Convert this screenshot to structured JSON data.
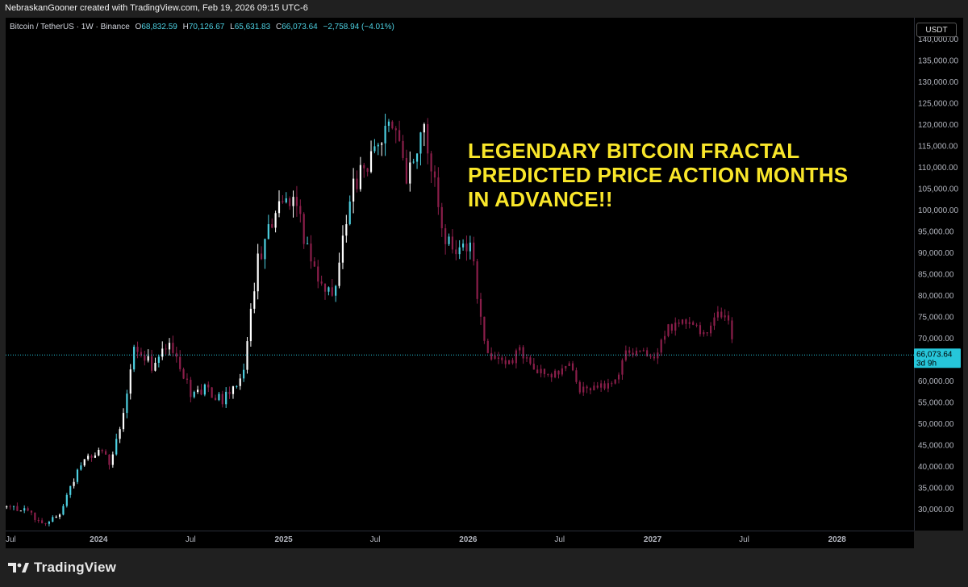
{
  "header": {
    "text": "NebraskanGooner created with TradingView.com, Feb 19, 2026 09:15 UTC-6"
  },
  "legend": {
    "symbol": "Bitcoin / TetherUS · 1W · Binance",
    "open_label": "O",
    "open_value": "68,832.59",
    "high_label": "H",
    "high_value": "70,126.67",
    "low_label": "L",
    "low_value": "65,631.83",
    "close_label": "C",
    "close_value": "66,073.64",
    "change": "−2,758.94 (−4.01%)"
  },
  "price_axis": {
    "currency": "USDT",
    "current_price": "66,073.64",
    "countdown": "3d 9h"
  },
  "annotation": {
    "lines": [
      "LEGENDARY BITCOIN FRACTAL",
      "PREDICTED PRICE ACTION MONTHS",
      "IN ADVANCE!!"
    ]
  },
  "footer": {
    "brand": "TradingView"
  },
  "colors": {
    "up": "#4dd0e1",
    "up_white": "#ffffff",
    "down": "#8b1e4a",
    "projection": "#8b1e4a",
    "annotation": "#f9e62a",
    "last_price": "#26c6da"
  },
  "chart_data": {
    "type": "candlestick",
    "timeframe": "1W",
    "ylim": [
      25000,
      145000
    ],
    "y_ticks": [
      30000,
      35000,
      40000,
      45000,
      50000,
      55000,
      60000,
      65000,
      70000,
      75000,
      80000,
      85000,
      90000,
      95000,
      100000,
      105000,
      110000,
      115000,
      120000,
      125000,
      130000,
      135000,
      140000
    ],
    "y_tick_labels": [
      "30,000.00",
      "35,000.00",
      "40,000.00",
      "45,000.00",
      "50,000.00",
      "55,000.00",
      "60,000.00",
      "65,000.00",
      "70,000.00",
      "75,000.00",
      "80,000.00",
      "85,000.00",
      "90,000.00",
      "95,000.00",
      "100,000.00",
      "105,000.00",
      "110,000.00",
      "115,000.00",
      "120,000.00",
      "125,000.00",
      "130,000.00",
      "135,000.00",
      "140,000.00"
    ],
    "x_range": [
      "2023-07-01",
      "2028-06-01"
    ],
    "x_ticks": [
      {
        "label": "Jul",
        "date": "2023-07-01"
      },
      {
        "label": "2024",
        "date": "2024-01-01"
      },
      {
        "label": "Jul",
        "date": "2024-07-01"
      },
      {
        "label": "2025",
        "date": "2025-01-01"
      },
      {
        "label": "Jul",
        "date": "2025-07-01"
      },
      {
        "label": "2026",
        "date": "2026-01-01"
      },
      {
        "label": "Jul",
        "date": "2026-07-01"
      },
      {
        "label": "2027",
        "date": "2027-01-01"
      },
      {
        "label": "Jul",
        "date": "2027-07-01"
      },
      {
        "label": "2028",
        "date": "2028-01-01"
      }
    ],
    "last_price": 66073.64,
    "anchors": [
      [
        "2023-07-03",
        30500
      ],
      [
        "2023-08-14",
        29500
      ],
      [
        "2023-09-11",
        26300
      ],
      [
        "2023-10-16",
        28600
      ],
      [
        "2023-11-06",
        35500
      ],
      [
        "2023-12-04",
        41500
      ],
      [
        "2024-01-08",
        44000
      ],
      [
        "2024-01-22",
        40500
      ],
      [
        "2024-02-19",
        51500
      ],
      [
        "2024-03-11",
        69000
      ],
      [
        "2024-04-15",
        63500
      ],
      [
        "2024-05-20",
        70000
      ],
      [
        "2024-07-01",
        57500
      ],
      [
        "2024-08-05",
        58000
      ],
      [
        "2024-09-02",
        55000
      ],
      [
        "2024-10-14",
        62500
      ],
      [
        "2024-11-11",
        88000
      ],
      [
        "2024-12-16",
        100000
      ],
      [
        "2025-01-20",
        104000
      ],
      [
        "2025-02-24",
        87000
      ],
      [
        "2025-04-07",
        79000
      ],
      [
        "2025-05-19",
        105000
      ],
      [
        "2025-07-14",
        117500
      ],
      [
        "2025-08-11",
        119000
      ],
      [
        "2025-09-01",
        108000
      ],
      [
        "2025-10-06",
        121000
      ],
      [
        "2025-11-10",
        95000
      ],
      [
        "2025-12-08",
        89000
      ],
      [
        "2026-01-05",
        92000
      ],
      [
        "2026-02-02",
        70000
      ],
      [
        "2026-02-16",
        66073.64
      ]
    ],
    "projection_anchors": [
      [
        "2026-02-23",
        66000
      ],
      [
        "2026-03-16",
        63500
      ],
      [
        "2026-04-13",
        67000
      ],
      [
        "2026-05-18",
        62000
      ],
      [
        "2026-06-22",
        61500
      ],
      [
        "2026-07-20",
        64000
      ],
      [
        "2026-08-10",
        58000
      ],
      [
        "2026-09-14",
        59000
      ],
      [
        "2026-10-12",
        58500
      ],
      [
        "2026-11-09",
        66500
      ],
      [
        "2026-12-07",
        68000
      ],
      [
        "2027-01-04",
        65500
      ],
      [
        "2027-02-01",
        72500
      ],
      [
        "2027-03-08",
        74500
      ],
      [
        "2027-04-12",
        71000
      ],
      [
        "2027-05-10",
        76500
      ],
      [
        "2027-05-31",
        74500
      ],
      [
        "2027-06-07",
        70000
      ]
    ]
  }
}
